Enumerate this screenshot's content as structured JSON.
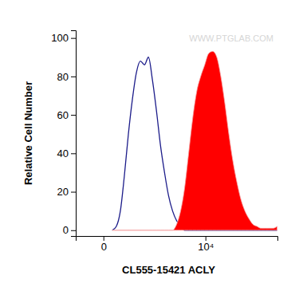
{
  "chart_data": {
    "type": "line",
    "x_label": "CL555-15421 ACLY",
    "y_label": "Relative Cell Number",
    "annotation": "WWW.PTGLAB.COM",
    "log": "x",
    "xlim": [
      -250,
      262144
    ],
    "xticks": [
      0,
      {
        "value": 10000,
        "label": "10⁴"
      }
    ],
    "ylim": [
      -3,
      104
    ],
    "yticks": [
      0,
      20,
      40,
      60,
      80,
      100
    ],
    "x": [
      49,
      79,
      115,
      157,
      209,
      270,
      344,
      433,
      539,
      666,
      819,
      1002,
      1222,
      1486,
      1801,
      2181,
      2636,
      3182,
      3837,
      4622,
      5560,
      6690,
      8045,
      9670,
      11620,
      13950,
      16750,
      20110,
      24150,
      28980,
      34780,
      41730,
      50070,
      60080,
      72080,
      86470,
      103800,
      124400,
      149200,
      179000,
      214700,
      257500
    ],
    "series": [
      {
        "type": "line",
        "color": "#1c1c8a",
        "values": [
          0,
          2,
          10,
          28,
          50,
          68,
          82,
          88,
          86,
          90,
          78,
          62,
          44,
          30,
          18,
          10,
          5,
          2,
          0,
          0,
          0,
          0,
          0,
          0,
          0,
          0,
          0,
          0,
          0,
          0,
          0,
          0,
          0,
          0,
          0,
          0,
          0,
          0,
          0,
          0,
          0,
          0
        ]
      },
      {
        "type": "area",
        "color": "#ff0000",
        "values": [
          0,
          0,
          0,
          0,
          0,
          0,
          0,
          0,
          0,
          0,
          0,
          0,
          0,
          0,
          0,
          0,
          3,
          10,
          22,
          40,
          58,
          72,
          80,
          86,
          92,
          93,
          90,
          80,
          66,
          50,
          36,
          25,
          16,
          10,
          6,
          3,
          2,
          1,
          1,
          1,
          1,
          2
        ]
      }
    ]
  }
}
